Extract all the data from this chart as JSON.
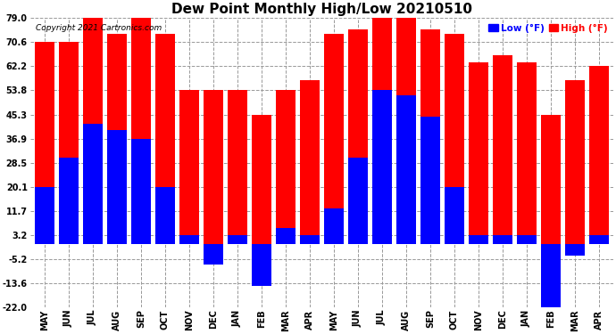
{
  "title": "Dew Point Monthly High/Low 20210510",
  "copyright": "Copyright 2021 Cartronics.com",
  "months": [
    "MAY",
    "JUN",
    "JUL",
    "AUG",
    "SEP",
    "OCT",
    "NOV",
    "DEC",
    "JAN",
    "FEB",
    "MAR",
    "APR",
    "MAY",
    "JUN",
    "JUL",
    "AUG",
    "SEP",
    "OCT",
    "NOV",
    "DEC",
    "JAN",
    "FEB",
    "MAR",
    "APR"
  ],
  "high_values": [
    70.6,
    70.6,
    79.0,
    73.4,
    79.0,
    73.4,
    53.8,
    53.8,
    53.8,
    45.3,
    53.8,
    57.2,
    73.4,
    75.2,
    79.0,
    79.0,
    75.2,
    73.4,
    63.5,
    66.0,
    63.5,
    45.3,
    57.2,
    62.2
  ],
  "low_values": [
    20.1,
    30.2,
    42.0,
    39.9,
    36.9,
    20.1,
    3.2,
    -7.0,
    3.2,
    -14.5,
    5.5,
    3.2,
    12.5,
    30.2,
    53.8,
    52.0,
    44.5,
    20.1,
    3.2,
    3.2,
    3.2,
    -22.0,
    -4.0,
    3.2
  ],
  "high_color": "#ff0000",
  "low_color": "#0000ff",
  "bg_color": "#ffffff",
  "yticks": [
    -22.0,
    -13.6,
    -5.2,
    3.2,
    11.7,
    20.1,
    28.5,
    36.9,
    45.3,
    53.8,
    62.2,
    70.6,
    79.0
  ],
  "ymin": -22.0,
  "ymax": 79.0,
  "title_fontsize": 11,
  "tick_fontsize": 7,
  "legend_fontsize": 7.5
}
